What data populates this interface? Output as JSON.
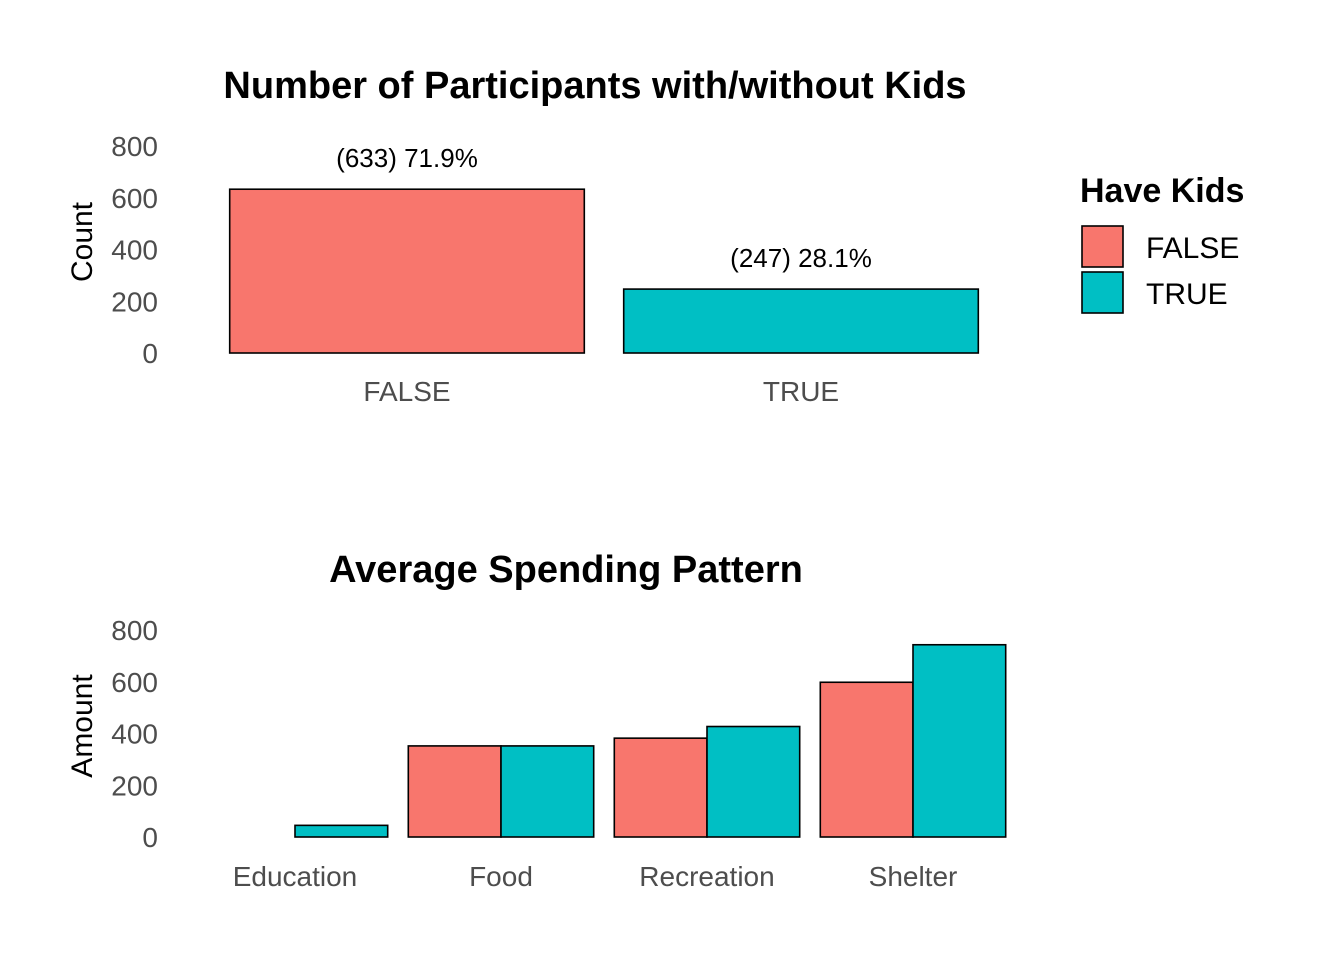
{
  "colors": {
    "false": "#F8766D",
    "true": "#00BFC4",
    "bar_stroke": "#000000"
  },
  "legend": {
    "title": "Have Kids",
    "entries": [
      {
        "label": "FALSE",
        "color": "#F8766D"
      },
      {
        "label": "TRUE",
        "color": "#00BFC4"
      }
    ],
    "position": "right"
  },
  "chart_data": [
    {
      "type": "bar",
      "title": "Number of Participants with/without Kids",
      "xlabel": "",
      "ylabel": "Count",
      "ylim": [
        0,
        800
      ],
      "yticks": [
        0,
        200,
        400,
        600,
        800
      ],
      "categories": [
        "FALSE",
        "TRUE"
      ],
      "values": [
        633,
        247
      ],
      "data_labels": [
        "(633) 71.9%",
        "(247) 28.1%"
      ],
      "grid": false
    },
    {
      "type": "bar",
      "title": "Average Spending Pattern",
      "xlabel": "",
      "ylabel": "Amount",
      "ylim": [
        0,
        800
      ],
      "yticks": [
        0,
        200,
        400,
        600,
        800
      ],
      "categories": [
        "Education",
        "Food",
        "Recreation",
        "Shelter"
      ],
      "series": [
        {
          "name": "FALSE",
          "values": [
            0,
            352,
            382,
            598
          ]
        },
        {
          "name": "TRUE",
          "values": [
            45,
            352,
            427,
            743
          ]
        }
      ],
      "grid": false
    }
  ]
}
